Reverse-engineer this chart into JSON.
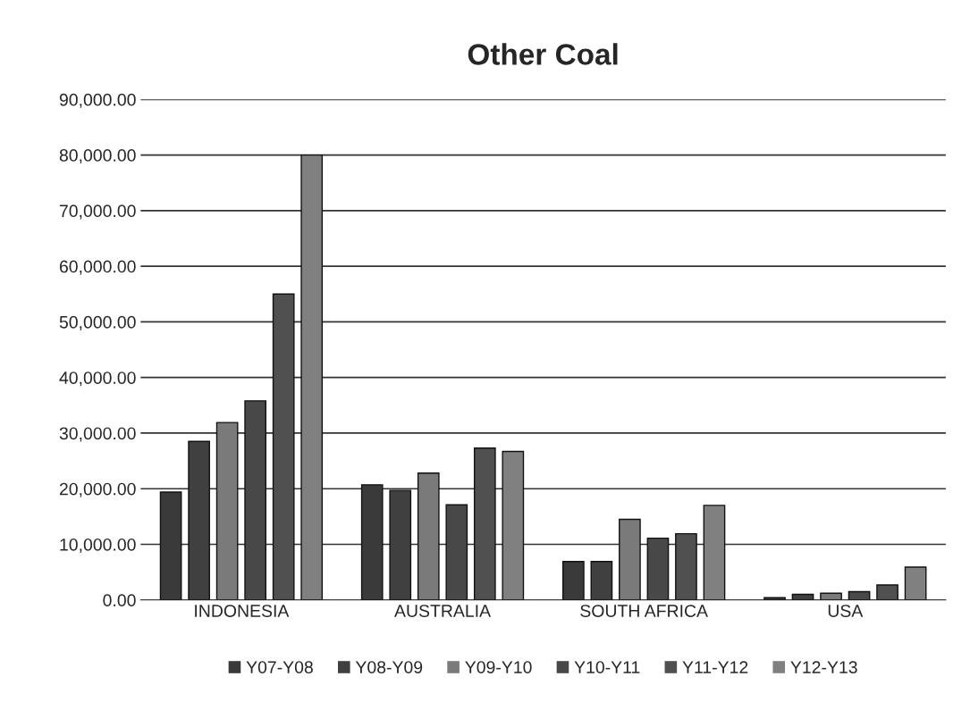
{
  "chart_data": {
    "type": "bar",
    "title": "Other Coal",
    "categories": [
      "INDONESIA",
      "AUSTRALIA",
      "SOUTH AFRICA",
      "USA"
    ],
    "series": [
      {
        "name": "Y07-Y08",
        "color": "#3a3a3a",
        "values": [
          19400,
          20700,
          6900,
          400
        ]
      },
      {
        "name": "Y08-Y09",
        "color": "#404040",
        "values": [
          28500,
          19700,
          6900,
          1000
        ]
      },
      {
        "name": "Y09-Y10",
        "color": "#7a7a7a",
        "values": [
          31900,
          22800,
          14500,
          1200
        ]
      },
      {
        "name": "Y10-Y11",
        "color": "#484848",
        "values": [
          35800,
          17100,
          11100,
          1500
        ]
      },
      {
        "name": "Y11-Y12",
        "color": "#505050",
        "values": [
          55000,
          27300,
          11900,
          2700
        ]
      },
      {
        "name": "Y12-Y13",
        "color": "#808080",
        "values": [
          80000,
          26700,
          17000,
          5900
        ]
      }
    ],
    "ylim": [
      0,
      90000
    ],
    "yticks": [
      {
        "value": 0,
        "label": "0.00"
      },
      {
        "value": 10000,
        "label": "10,000.00"
      },
      {
        "value": 20000,
        "label": "20,000.00"
      },
      {
        "value": 30000,
        "label": "30,000.00"
      },
      {
        "value": 40000,
        "label": "40,000.00"
      },
      {
        "value": 50000,
        "label": "50,000.00"
      },
      {
        "value": 60000,
        "label": "60,000.00"
      },
      {
        "value": 70000,
        "label": "70,000.00"
      },
      {
        "value": 80000,
        "label": "80,000.00"
      },
      {
        "value": 90000,
        "label": "90,000.00"
      }
    ],
    "grid": "y",
    "legend": "bottom"
  }
}
